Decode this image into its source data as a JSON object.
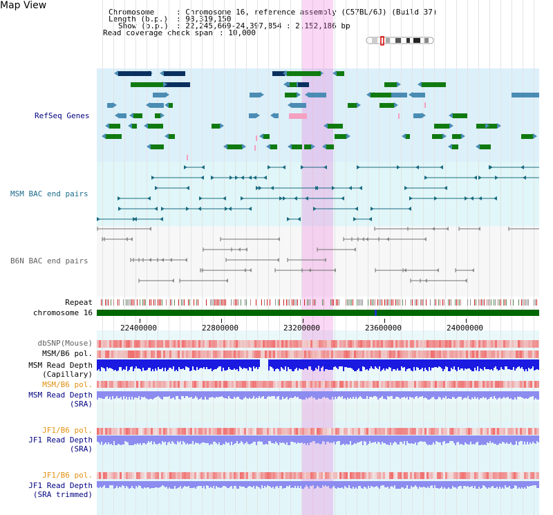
{
  "title": "Map View",
  "info": {
    "chromosome_key": "Chromosome",
    "chromosome_val": ": Chromosome 16, reference assembly (C57BL/6J) (Build 37)",
    "length_key": "Length (b.p.)",
    "length_val": ": 98,319,150",
    "show_key": "Show (b.p.)",
    "show_val": ": 22,245,669-24,397,854 : 2,152,186 bp",
    "coverage_key": "Read coverage check span",
    "coverage_val": ": 10,000"
  },
  "tracks": {
    "refseq": "RefSeq Genes",
    "msm_bac": "MSM BAC end pairs",
    "b6n_bac": "B6N BAC end pairs",
    "repeat": "Repeat",
    "chromosome": "chromosome 16",
    "dbsnp": "dbSNP(Mouse)",
    "msm_b6_pol_1": "MSM/B6 pol.",
    "msm_depth_cap_1": "MSM Read Depth",
    "msm_depth_cap_2": "(Capillary)",
    "msm_b6_pol_2": "MSM/B6 pol.",
    "msm_depth_sra_1": "MSM Read Depth",
    "msm_depth_sra_2": "(SRA)",
    "jf1_pol_1": "JF1/B6 pol.",
    "jf1_depth_1": "JF1 Read Depth",
    "jf1_depth_2": "(SRA)",
    "jf1_pol_2": "JF1/B6 pol.",
    "jf1_trim_1": "JF1 Read Depth",
    "jf1_trim_2": "(SRA trimmed)"
  },
  "ruler": {
    "ticks": [
      "22400000",
      "22800000",
      "23200000",
      "23600000",
      "24000000"
    ]
  },
  "colors": {
    "refseq_bg": "#dcf0fa",
    "msm_bg": "#e0f6f8",
    "b6n_bg": "#f6f6f6",
    "chromosome": "#006600",
    "gene_dark": "#0a3060",
    "gene_mid": "#4a8cb4",
    "gene_green": "#107a10",
    "pink": "#f4a0c0",
    "highlight": "#ee6ed6",
    "depth_blue": "#1a1ae0",
    "depth_light": "#8c8cf0",
    "pol_red": "#ee3030",
    "teal": "#1a6a80",
    "gray_line": "#707070",
    "label_navy": "#000080",
    "label_orange": "#e09010",
    "label_teal": "#1a6a8a",
    "label_gray": "#606060"
  }
}
